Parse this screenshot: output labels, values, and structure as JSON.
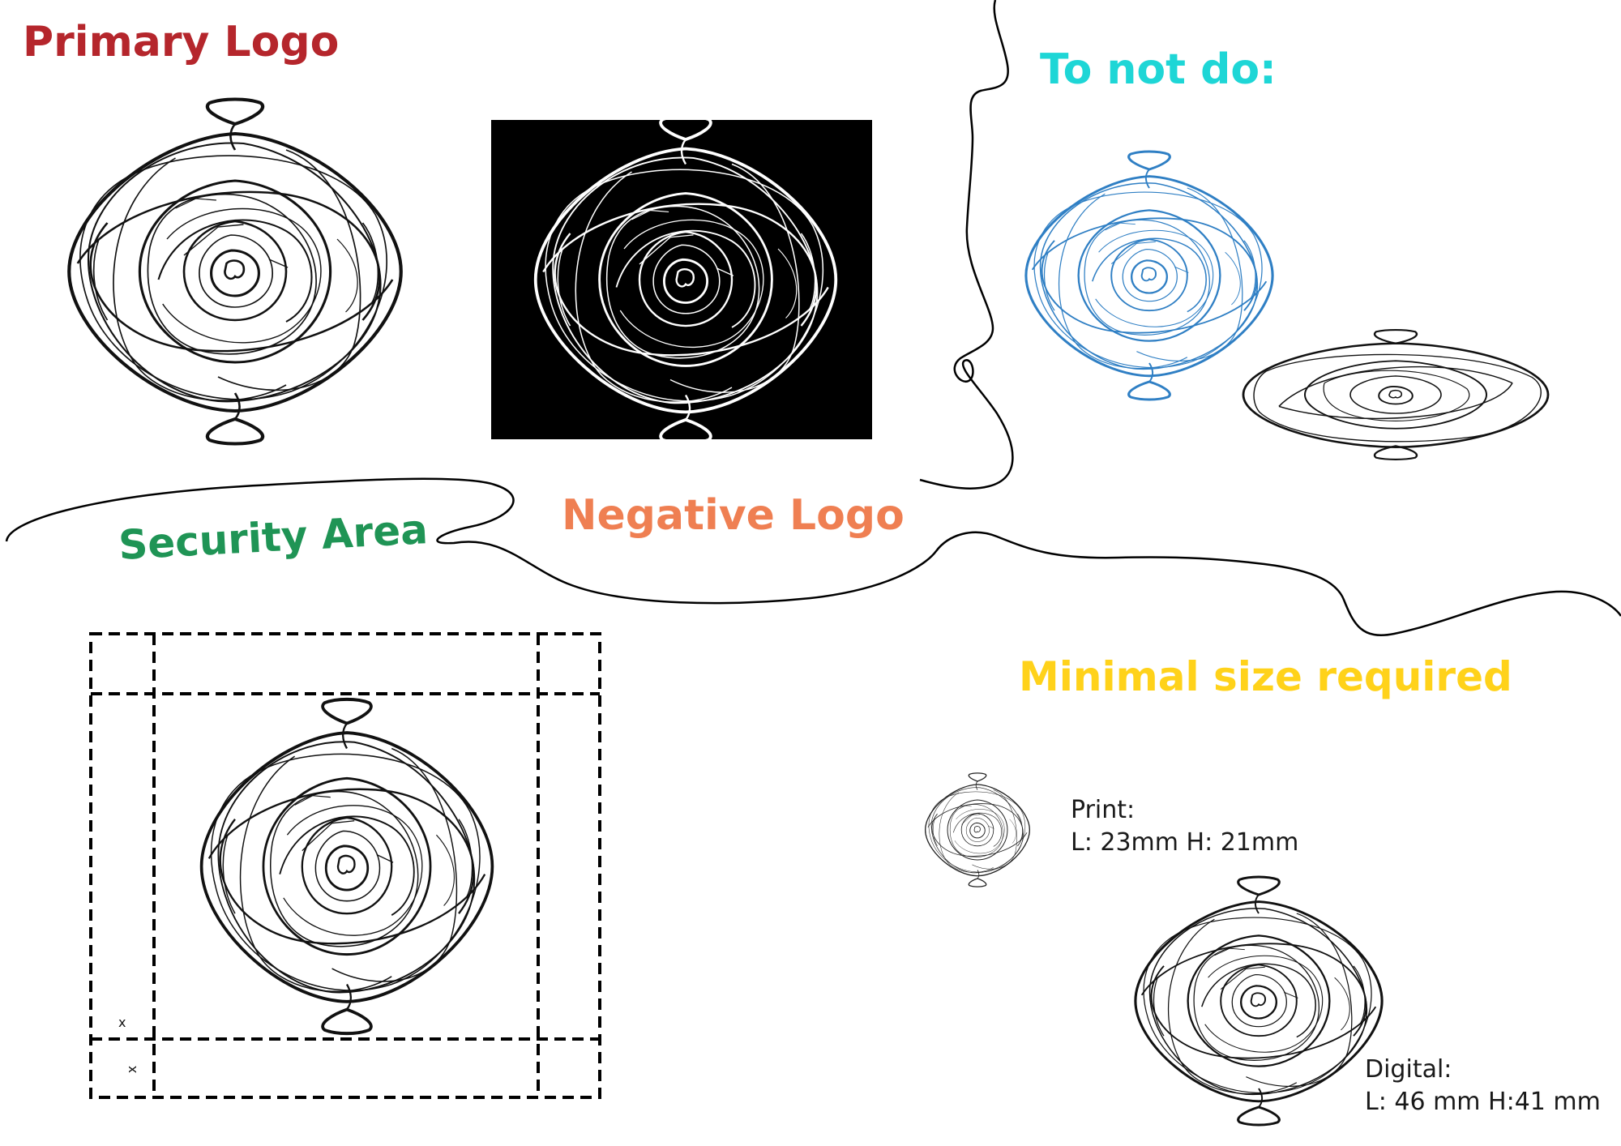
{
  "titles": {
    "primary": "Primary Logo",
    "negative": "Negative Logo",
    "not_do": "To not do:",
    "security": "Security Area",
    "minimal": "Minimal size required"
  },
  "colors": {
    "primary_title": "#b5262c",
    "negative_title": "#ef7f52",
    "not_do_title": "#1ed6d6",
    "security_title": "#1f9455",
    "minimal_title": "#ffd21a",
    "logo_blue": "#2f7fc4"
  },
  "security_area": {
    "marker_top": "x",
    "marker_side": "x"
  },
  "print": {
    "label": "Print:",
    "dims": "L: 23mm H: 21mm"
  },
  "digital": {
    "label": "Digital:",
    "dims": "L: 46 mm H:41 mm"
  }
}
